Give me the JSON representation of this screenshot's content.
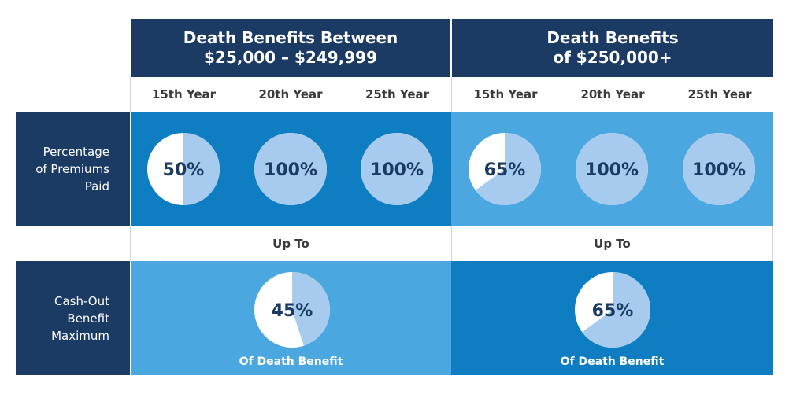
{
  "colors": {
    "navy": "#1b3a64",
    "mid_blue": "#0e7dc2",
    "light_blue": "#4ba7e0",
    "pie_light": "#a6cbee",
    "pie_white": "#ffffff"
  },
  "groups": [
    {
      "title_line1": "Death Benefits Between",
      "title_line2": "$25,000 – $249,999"
    },
    {
      "title_line1": "Death Benefits",
      "title_line2": "of $250,000+"
    }
  ],
  "years": [
    "15th Year",
    "20th Year",
    "25th Year",
    "15th Year",
    "20th Year",
    "25th Year"
  ],
  "row_premiums": {
    "label_line1": "Percentage",
    "label_line2": "of Premiums",
    "label_line3": "Paid",
    "values": [
      {
        "pct": 50,
        "label": "50%"
      },
      {
        "pct": 100,
        "label": "100%"
      },
      {
        "pct": 100,
        "label": "100%"
      },
      {
        "pct": 65,
        "label": "65%"
      },
      {
        "pct": 100,
        "label": "100%"
      },
      {
        "pct": 100,
        "label": "100%"
      }
    ]
  },
  "up_to": [
    "Up To",
    "Up To"
  ],
  "row_cashout": {
    "label_line1": "Cash-Out",
    "label_line2": "Benefit",
    "label_line3": "Maximum",
    "values": [
      {
        "pct": 45,
        "label": "45%",
        "caption": "Of Death Benefit"
      },
      {
        "pct": 65,
        "label": "65%",
        "caption": "Of Death Benefit"
      }
    ]
  }
}
